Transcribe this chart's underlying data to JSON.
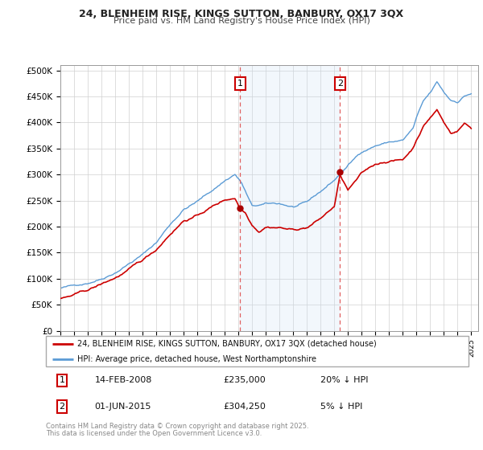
{
  "title1": "24, BLENHEIM RISE, KINGS SUTTON, BANBURY, OX17 3QX",
  "title2": "Price paid vs. HM Land Registry's House Price Index (HPI)",
  "xlim_start": 1995.0,
  "xlim_end": 2025.5,
  "ylim_min": 0,
  "ylim_max": 510000,
  "yticks": [
    0,
    50000,
    100000,
    150000,
    200000,
    250000,
    300000,
    350000,
    400000,
    450000,
    500000
  ],
  "ytick_labels": [
    "£0",
    "£50K",
    "£100K",
    "£150K",
    "£200K",
    "£250K",
    "£300K",
    "£350K",
    "£400K",
    "£450K",
    "£500K"
  ],
  "xticks": [
    1995,
    1996,
    1997,
    1998,
    1999,
    2000,
    2001,
    2002,
    2003,
    2004,
    2005,
    2006,
    2007,
    2008,
    2009,
    2010,
    2011,
    2012,
    2013,
    2014,
    2015,
    2016,
    2017,
    2018,
    2019,
    2020,
    2021,
    2022,
    2023,
    2024,
    2025
  ],
  "hpi_color": "#5b9bd5",
  "price_color": "#cc0000",
  "marker_color": "#aa0000",
  "vline_color": "#e06060",
  "annotation_box_color": "#cc0000",
  "shade_color": "#cce0f5",
  "legend_label_red": "24, BLENHEIM RISE, KINGS SUTTON, BANBURY, OX17 3QX (detached house)",
  "legend_label_blue": "HPI: Average price, detached house, West Northamptonshire",
  "sale1_date": 2008.12,
  "sale1_price": 235000,
  "sale2_date": 2015.42,
  "sale2_price": 304250,
  "footer1": "Contains HM Land Registry data © Crown copyright and database right 2025.",
  "footer2": "This data is licensed under the Open Government Licence v3.0."
}
